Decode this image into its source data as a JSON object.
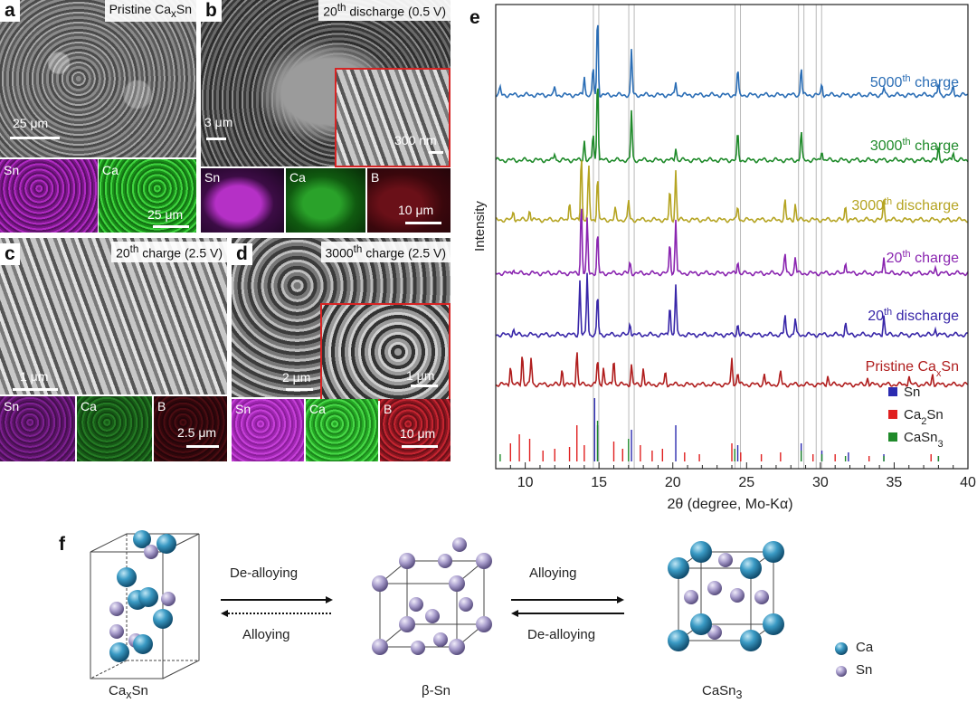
{
  "panel_a": {
    "letter": "a",
    "title_pre": "Pristine Ca",
    "title_sub": "x",
    "title_post": "Sn",
    "scale_main": "25 μm",
    "maps": [
      {
        "label": "Sn",
        "color": "#a21fb0"
      },
      {
        "label": "Ca",
        "color": "#24b824"
      }
    ],
    "scale_map": "25 μm"
  },
  "panel_b": {
    "letter": "b",
    "title_pre": "20",
    "title_sup": "th",
    "title_post": " discharge (0.5 V)",
    "scale_main": "3 μm",
    "scale_inset": "300 nm",
    "maps": [
      {
        "label": "Sn",
        "color": "#9b1fae"
      },
      {
        "label": "Ca",
        "color": "#1f8a1f"
      },
      {
        "label": "B",
        "color": "#5a0f14"
      }
    ],
    "scale_map": "10 μm"
  },
  "panel_c": {
    "letter": "c",
    "title_pre": "20",
    "title_sup": "th",
    "title_post": " charge (2.5 V)",
    "scale_main": "1 μm",
    "maps": [
      {
        "label": "Sn",
        "color": "#6f1a7c"
      },
      {
        "label": "Ca",
        "color": "#1c6a1c"
      },
      {
        "label": "B",
        "color": "#3e0a0e"
      }
    ],
    "scale_map": "2.5 μm"
  },
  "panel_d": {
    "letter": "d",
    "title_pre": "3000",
    "title_sup": "th",
    "title_post": " charge (2.5 V)",
    "scale_main": "2 μm",
    "scale_inset": "1 μm",
    "maps": [
      {
        "label": "Sn",
        "color": "#b52fc4"
      },
      {
        "label": "Ca",
        "color": "#2fc12f"
      },
      {
        "label": "B",
        "color": "#b01e2a"
      }
    ],
    "scale_map": "10 μm"
  },
  "panel_e": {
    "letter": "e"
  },
  "chart_data": {
    "type": "line",
    "xlabel": "2θ (degree, Mo-Kα)",
    "ylabel": "Intensity",
    "xlim": [
      8,
      40
    ],
    "xticks": [
      10,
      15,
      20,
      25,
      30,
      35,
      40
    ],
    "series": [
      {
        "name": "5000th charge",
        "label_pre": "5000",
        "label_sup": "th",
        "label_post": " charge",
        "color": "#2a6db5",
        "offset": 6,
        "peaks": [
          [
            8.3,
            8
          ],
          [
            12,
            8
          ],
          [
            14,
            22
          ],
          [
            14.6,
            30
          ],
          [
            14.9,
            90
          ],
          [
            17.2,
            50
          ],
          [
            20.2,
            15
          ],
          [
            24.4,
            28
          ],
          [
            28.7,
            32
          ],
          [
            30.1,
            12
          ],
          [
            34.3,
            8
          ],
          [
            38.0,
            12
          ],
          [
            39.0,
            10
          ]
        ]
      },
      {
        "name": "3000th charge",
        "label_pre": "3000",
        "label_sup": "th",
        "label_post": " charge",
        "color": "#1f8a2a",
        "offset": 5,
        "peaks": [
          [
            12,
            8
          ],
          [
            14,
            22
          ],
          [
            14.6,
            30
          ],
          [
            14.9,
            95
          ],
          [
            17.2,
            55
          ],
          [
            20.2,
            14
          ],
          [
            24.4,
            30
          ],
          [
            28.7,
            32
          ],
          [
            30.1,
            12
          ],
          [
            38.0,
            14
          ],
          [
            39.0,
            10
          ]
        ]
      },
      {
        "name": "3000th discharge",
        "label_pre": "3000",
        "label_sup": "th",
        "label_post": " discharge",
        "color": "#b5a422",
        "offset": 4,
        "peaks": [
          [
            9.2,
            10
          ],
          [
            10.3,
            12
          ],
          [
            13.0,
            22
          ],
          [
            13.8,
            75
          ],
          [
            14.3,
            60
          ],
          [
            14.9,
            50
          ],
          [
            16.1,
            12
          ],
          [
            17.0,
            22
          ],
          [
            19.8,
            32
          ],
          [
            20.2,
            55
          ],
          [
            24.4,
            16
          ],
          [
            27.6,
            22
          ],
          [
            28.3,
            18
          ],
          [
            31.7,
            16
          ],
          [
            34.3,
            22
          ]
        ]
      },
      {
        "name": "20th charge",
        "label_pre": "20",
        "label_sup": "th",
        "label_post": " charge",
        "color": "#8a25b0",
        "offset": 3,
        "peaks": [
          [
            9.2,
            6
          ],
          [
            13.8,
            80
          ],
          [
            14.2,
            60
          ],
          [
            14.9,
            45
          ],
          [
            17.1,
            12
          ],
          [
            19.8,
            35
          ],
          [
            20.2,
            60
          ],
          [
            24.4,
            14
          ],
          [
            27.6,
            22
          ],
          [
            28.3,
            18
          ],
          [
            31.7,
            14
          ],
          [
            34.3,
            20
          ],
          [
            37.8,
            6
          ]
        ]
      },
      {
        "name": "20th discharge",
        "label_pre": "20",
        "label_sup": "th",
        "label_post": " discharge",
        "color": "#3826a8",
        "offset": 2,
        "peaks": [
          [
            9.2,
            6
          ],
          [
            13.7,
            60
          ],
          [
            14.2,
            70
          ],
          [
            14.9,
            45
          ],
          [
            17.1,
            14
          ],
          [
            19.8,
            35
          ],
          [
            20.2,
            55
          ],
          [
            24.4,
            12
          ],
          [
            27.6,
            22
          ],
          [
            28.3,
            18
          ],
          [
            31.7,
            14
          ],
          [
            34.3,
            22
          ],
          [
            37.8,
            8
          ]
        ]
      },
      {
        "name": "Pristine CaxSn",
        "label_pre": "Pristine Ca",
        "label_sub": "x",
        "label_post": "Sn",
        "color": "#b01e1e",
        "offset": 1,
        "peaks": [
          [
            9.0,
            22
          ],
          [
            9.8,
            35
          ],
          [
            10.4,
            30
          ],
          [
            12.5,
            18
          ],
          [
            13.5,
            38
          ],
          [
            14.9,
            28
          ],
          [
            15.3,
            20
          ],
          [
            16.0,
            30
          ],
          [
            17.2,
            22
          ],
          [
            18.0,
            18
          ],
          [
            19.5,
            14
          ],
          [
            24.0,
            30
          ],
          [
            24.4,
            14
          ],
          [
            26.2,
            12
          ],
          [
            27.3,
            14
          ],
          [
            30.5,
            10
          ],
          [
            33.2,
            8
          ],
          [
            36.0,
            10
          ],
          [
            37.6,
            12
          ]
        ]
      }
    ],
    "reference": [
      {
        "name": "Sn",
        "color": "#2b2bb0",
        "peaks": [
          [
            14.7,
            70
          ],
          [
            14.9,
            40
          ],
          [
            17.2,
            35
          ],
          [
            20.2,
            40
          ],
          [
            24.4,
            18
          ],
          [
            28.7,
            20
          ],
          [
            30.1,
            12
          ],
          [
            31.9,
            10
          ],
          [
            34.3,
            8
          ],
          [
            38.0,
            6
          ]
        ]
      },
      {
        "name": "Ca2Sn",
        "color": "#e02020",
        "peaks": [
          [
            9.0,
            20
          ],
          [
            9.6,
            30
          ],
          [
            10.3,
            25
          ],
          [
            11.2,
            12
          ],
          [
            12.0,
            14
          ],
          [
            13.0,
            16
          ],
          [
            13.5,
            40
          ],
          [
            14.0,
            18
          ],
          [
            16.0,
            22
          ],
          [
            16.6,
            14
          ],
          [
            17.8,
            18
          ],
          [
            18.6,
            12
          ],
          [
            19.3,
            14
          ],
          [
            20.8,
            10
          ],
          [
            21.8,
            8
          ],
          [
            24.0,
            20
          ],
          [
            24.6,
            10
          ],
          [
            26.0,
            8
          ],
          [
            27.3,
            10
          ],
          [
            29.5,
            8
          ],
          [
            31.0,
            8
          ],
          [
            33.3,
            6
          ],
          [
            37.5,
            8
          ]
        ]
      },
      {
        "name": "CaSn3",
        "color": "#1f8a2a",
        "peaks": [
          [
            8.3,
            8
          ],
          [
            14.9,
            45
          ],
          [
            17.0,
            25
          ],
          [
            24.2,
            14
          ],
          [
            28.7,
            12
          ],
          [
            30.1,
            8
          ],
          [
            31.7,
            6
          ],
          [
            34.3,
            6
          ],
          [
            38.0,
            6
          ]
        ]
      }
    ],
    "legend": [
      {
        "name": "Sn",
        "label_pre": "Sn",
        "color": "#2b2bb0"
      },
      {
        "name": "Ca2Sn",
        "label_pre": "Ca",
        "label_sub": "2",
        "label_post": "Sn",
        "color": "#e02020"
      },
      {
        "name": "CaSn3",
        "label_pre": "CaSn",
        "label_sub": "3",
        "color": "#1f8a2a"
      }
    ],
    "guide_lines_x": [
      14.8,
      17.2,
      24.4,
      28.7,
      29.9
    ]
  },
  "panel_f": {
    "letter": "f",
    "structures": [
      {
        "pre": "Ca",
        "sub": "x",
        "post": "Sn"
      },
      {
        "pre": "β-Sn"
      },
      {
        "pre": "CaSn",
        "sub": "3"
      }
    ],
    "arrow1_top": "De-alloying",
    "arrow1_bottom": "Alloying",
    "arrow2_top": "Alloying",
    "arrow2_bottom": "De-alloying",
    "legend": [
      {
        "label": "Ca",
        "color": "#2e8ab3"
      },
      {
        "label": "Sn",
        "color": "#9b8fbf"
      }
    ]
  }
}
